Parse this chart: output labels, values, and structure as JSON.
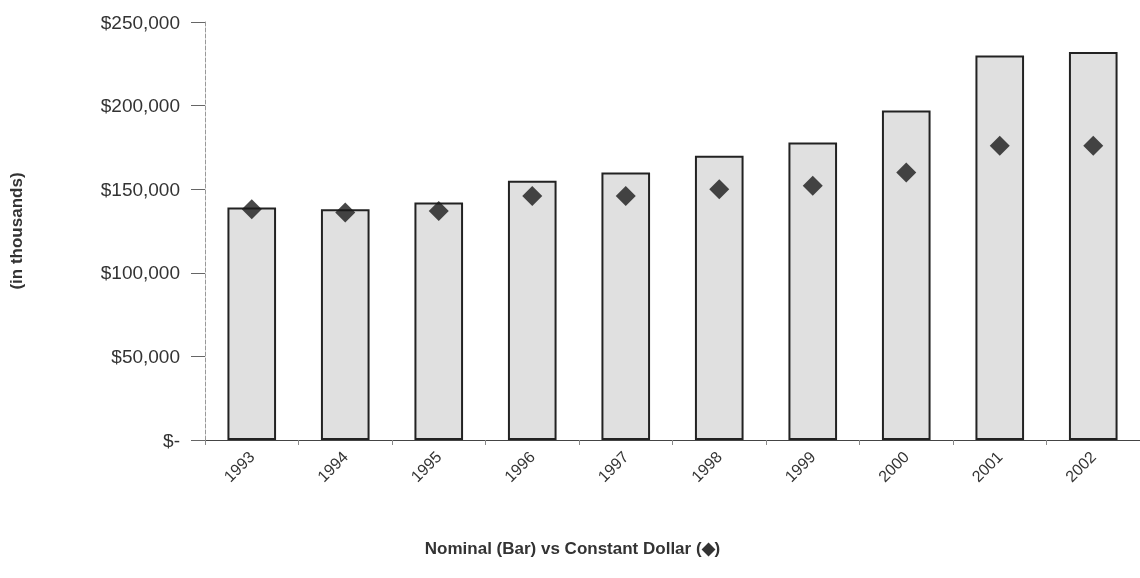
{
  "chart_data": {
    "type": "bar",
    "xlabel": "Nominal (Bar) vs Constant Dollar (◆)",
    "ylabel": "(in thousands)",
    "categories": [
      "1993",
      "1994",
      "1995",
      "1996",
      "1997",
      "1998",
      "1999",
      "2000",
      "2001",
      "2002"
    ],
    "series": [
      {
        "color": "#e0e0e0",
        "values": [
          139000,
          138000,
          142000,
          155000,
          160000,
          170000,
          178000,
          197000,
          230000,
          232000
        ]
      },
      {
        "type": "scatter",
        "color": "#1a1a1a",
        "marker": "diamond",
        "values": [
          138000,
          136000,
          137000,
          146000,
          146000,
          150000,
          152000,
          160000,
          176000,
          176000
        ]
      }
    ],
    "ylim": [
      0,
      250000
    ],
    "yticks": [
      {
        "value": 0,
        "label": "$-"
      },
      {
        "value": 50000,
        "label": "$50,000"
      },
      {
        "value": 100000,
        "label": "$100,000"
      },
      {
        "value": 150000,
        "label": "$150,000"
      },
      {
        "value": 200000,
        "label": "$200,000"
      },
      {
        "value": 250000,
        "label": "$250,000"
      }
    ],
    "grid": false
  }
}
